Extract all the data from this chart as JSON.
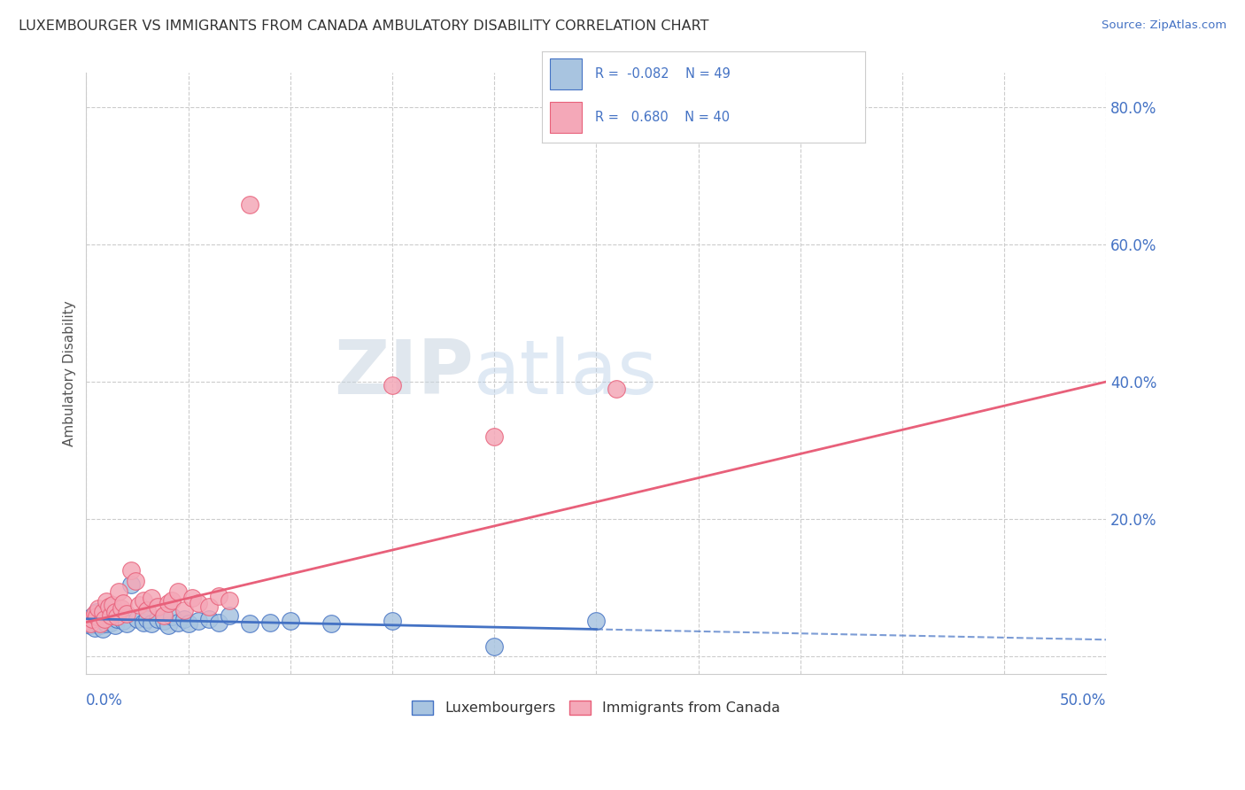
{
  "title": "LUXEMBOURGER VS IMMIGRANTS FROM CANADA AMBULATORY DISABILITY CORRELATION CHART",
  "source": "Source: ZipAtlas.com",
  "ylabel": "Ambulatory Disability",
  "legend_label1": "Luxembourgers",
  "legend_label2": "Immigrants from Canada",
  "r1": "-0.082",
  "n1": "49",
  "r2": "0.680",
  "n2": "40",
  "blue_color": "#a8c4e0",
  "pink_color": "#f4a8b8",
  "blue_line_color": "#4472c4",
  "pink_line_color": "#e8607a",
  "text_color": "#4472c4",
  "blue_scatter": [
    [
      0.001,
      0.05
    ],
    [
      0.002,
      0.055
    ],
    [
      0.002,
      0.045
    ],
    [
      0.003,
      0.058
    ],
    [
      0.003,
      0.048
    ],
    [
      0.004,
      0.06
    ],
    [
      0.004,
      0.042
    ],
    [
      0.005,
      0.052
    ],
    [
      0.005,
      0.065
    ],
    [
      0.006,
      0.048
    ],
    [
      0.006,
      0.058
    ],
    [
      0.007,
      0.055
    ],
    [
      0.007,
      0.045
    ],
    [
      0.008,
      0.06
    ],
    [
      0.008,
      0.04
    ],
    [
      0.009,
      0.052
    ],
    [
      0.01,
      0.055
    ],
    [
      0.01,
      0.048
    ],
    [
      0.011,
      0.062
    ],
    [
      0.012,
      0.05
    ],
    [
      0.013,
      0.058
    ],
    [
      0.014,
      0.045
    ],
    [
      0.015,
      0.055
    ],
    [
      0.016,
      0.06
    ],
    [
      0.018,
      0.052
    ],
    [
      0.02,
      0.048
    ],
    [
      0.022,
      0.105
    ],
    [
      0.025,
      0.055
    ],
    [
      0.028,
      0.05
    ],
    [
      0.03,
      0.055
    ],
    [
      0.032,
      0.048
    ],
    [
      0.035,
      0.055
    ],
    [
      0.038,
      0.052
    ],
    [
      0.04,
      0.045
    ],
    [
      0.042,
      0.058
    ],
    [
      0.045,
      0.05
    ],
    [
      0.048,
      0.055
    ],
    [
      0.05,
      0.048
    ],
    [
      0.055,
      0.052
    ],
    [
      0.06,
      0.055
    ],
    [
      0.065,
      0.05
    ],
    [
      0.07,
      0.06
    ],
    [
      0.08,
      0.048
    ],
    [
      0.09,
      0.05
    ],
    [
      0.1,
      0.052
    ],
    [
      0.12,
      0.048
    ],
    [
      0.15,
      0.052
    ],
    [
      0.2,
      0.015
    ],
    [
      0.25,
      0.052
    ]
  ],
  "pink_scatter": [
    [
      0.001,
      0.052
    ],
    [
      0.002,
      0.048
    ],
    [
      0.003,
      0.055
    ],
    [
      0.004,
      0.062
    ],
    [
      0.005,
      0.058
    ],
    [
      0.006,
      0.07
    ],
    [
      0.007,
      0.048
    ],
    [
      0.008,
      0.065
    ],
    [
      0.009,
      0.055
    ],
    [
      0.01,
      0.08
    ],
    [
      0.011,
      0.072
    ],
    [
      0.012,
      0.06
    ],
    [
      0.013,
      0.075
    ],
    [
      0.014,
      0.065
    ],
    [
      0.015,
      0.058
    ],
    [
      0.016,
      0.095
    ],
    [
      0.017,
      0.07
    ],
    [
      0.018,
      0.078
    ],
    [
      0.02,
      0.062
    ],
    [
      0.022,
      0.125
    ],
    [
      0.024,
      0.11
    ],
    [
      0.026,
      0.075
    ],
    [
      0.028,
      0.082
    ],
    [
      0.03,
      0.068
    ],
    [
      0.032,
      0.085
    ],
    [
      0.035,
      0.072
    ],
    [
      0.038,
      0.06
    ],
    [
      0.04,
      0.078
    ],
    [
      0.042,
      0.082
    ],
    [
      0.045,
      0.095
    ],
    [
      0.048,
      0.068
    ],
    [
      0.052,
      0.085
    ],
    [
      0.055,
      0.078
    ],
    [
      0.06,
      0.072
    ],
    [
      0.065,
      0.088
    ],
    [
      0.07,
      0.082
    ],
    [
      0.08,
      0.658
    ],
    [
      0.15,
      0.395
    ],
    [
      0.2,
      0.32
    ],
    [
      0.26,
      0.39
    ]
  ],
  "xlim": [
    0.0,
    0.5
  ],
  "ylim": [
    -0.025,
    0.85
  ],
  "ytick_vals": [
    0.0,
    0.2,
    0.4,
    0.6,
    0.8
  ],
  "ytick_labels": [
    "",
    "20.0%",
    "40.0%",
    "60.0%",
    "80.0%"
  ],
  "background_color": "#ffffff"
}
